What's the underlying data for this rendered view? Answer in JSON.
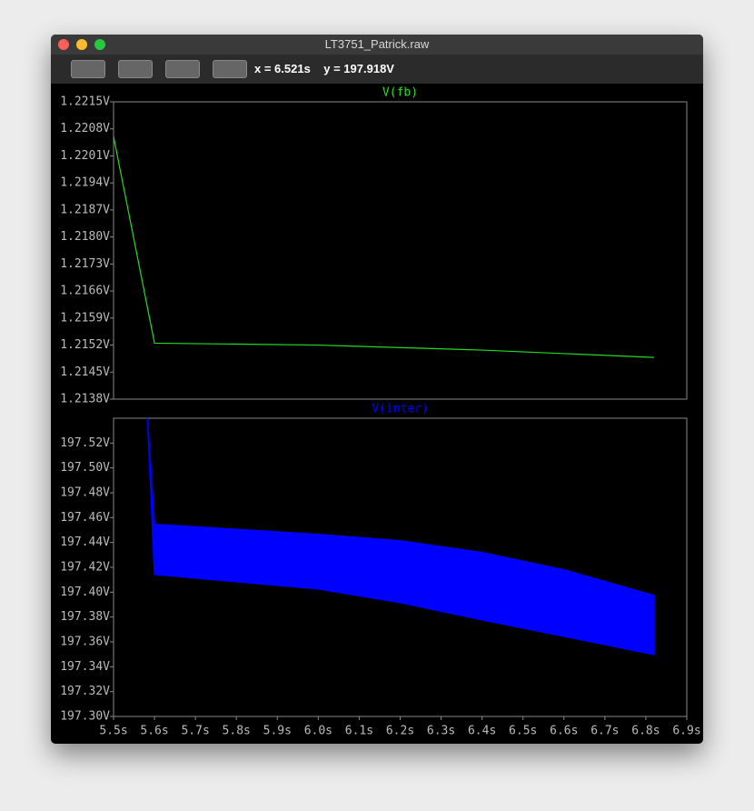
{
  "window": {
    "title": "LT3751_Patrick.raw",
    "cursor_x": "x = 6.521s",
    "cursor_y": "y = 197.918V"
  },
  "chart_data": [
    {
      "type": "line",
      "title": "V(fb)",
      "color": "#22dd22",
      "x": [
        5.5,
        5.6,
        6.0,
        6.4,
        6.82
      ],
      "values": [
        1.2206,
        1.21525,
        1.2152,
        1.21507,
        1.21488
      ],
      "xlim": [
        5.5,
        6.9
      ],
      "ylim": [
        1.2138,
        1.2215
      ],
      "yticks": [
        {
          "value": 1.2138,
          "label": "1.2138V"
        },
        {
          "value": 1.2145,
          "label": "1.2145V"
        },
        {
          "value": 1.2152,
          "label": "1.2152V"
        },
        {
          "value": 1.2159,
          "label": "1.2159V"
        },
        {
          "value": 1.2166,
          "label": "1.2166V"
        },
        {
          "value": 1.2173,
          "label": "1.2173V"
        },
        {
          "value": 1.218,
          "label": "1.2180V"
        },
        {
          "value": 1.2187,
          "label": "1.2187V"
        },
        {
          "value": 1.2194,
          "label": "1.2194V"
        },
        {
          "value": 1.2201,
          "label": "1.2201V"
        },
        {
          "value": 1.2208,
          "label": "1.2208V"
        },
        {
          "value": 1.2215,
          "label": "1.2215V"
        }
      ]
    },
    {
      "type": "band",
      "title": "V(inter)",
      "color": "#0000ff",
      "x": [
        5.583,
        5.6,
        6.0,
        6.2,
        6.4,
        6.6,
        6.82
      ],
      "upper": [
        197.54,
        197.4546,
        197.4465,
        197.4414,
        197.4319,
        197.418,
        197.3974
      ],
      "lower": [
        197.54,
        197.4143,
        197.4026,
        197.3916,
        197.3777,
        197.3645,
        197.3498
      ],
      "xlim": [
        5.5,
        6.9
      ],
      "ylim": [
        197.3,
        197.54
      ],
      "yticks": [
        {
          "value": 197.3,
          "label": "197.30V"
        },
        {
          "value": 197.32,
          "label": "197.32V"
        },
        {
          "value": 197.34,
          "label": "197.34V"
        },
        {
          "value": 197.36,
          "label": "197.36V"
        },
        {
          "value": 197.38,
          "label": "197.38V"
        },
        {
          "value": 197.4,
          "label": "197.40V"
        },
        {
          "value": 197.42,
          "label": "197.42V"
        },
        {
          "value": 197.44,
          "label": "197.44V"
        },
        {
          "value": 197.46,
          "label": "197.46V"
        },
        {
          "value": 197.48,
          "label": "197.48V"
        },
        {
          "value": 197.5,
          "label": "197.50V"
        },
        {
          "value": 197.52,
          "label": "197.52V"
        }
      ],
      "xticks": [
        {
          "value": 5.5,
          "label": "5.5s"
        },
        {
          "value": 5.6,
          "label": "5.6s"
        },
        {
          "value": 5.7,
          "label": "5.7s"
        },
        {
          "value": 5.8,
          "label": "5.8s"
        },
        {
          "value": 5.9,
          "label": "5.9s"
        },
        {
          "value": 6.0,
          "label": "6.0s"
        },
        {
          "value": 6.1,
          "label": "6.1s"
        },
        {
          "value": 6.2,
          "label": "6.2s"
        },
        {
          "value": 6.3,
          "label": "6.3s"
        },
        {
          "value": 6.4,
          "label": "6.4s"
        },
        {
          "value": 6.5,
          "label": "6.5s"
        },
        {
          "value": 6.6,
          "label": "6.6s"
        },
        {
          "value": 6.7,
          "label": "6.7s"
        },
        {
          "value": 6.8,
          "label": "6.8s"
        },
        {
          "value": 6.9,
          "label": "6.9s"
        }
      ]
    }
  ]
}
